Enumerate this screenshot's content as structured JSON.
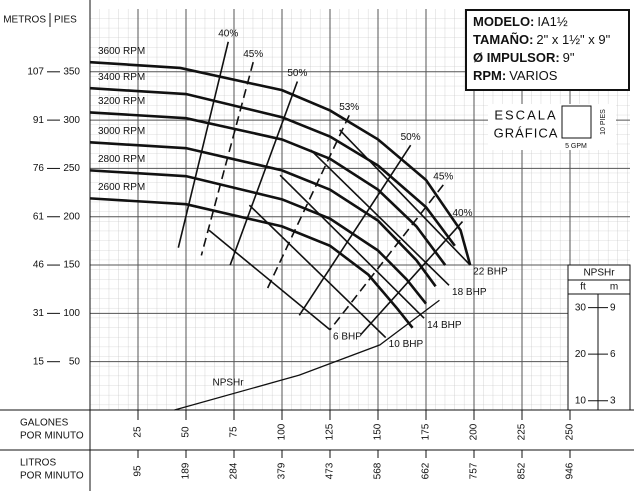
{
  "chart_data": {
    "type": "line",
    "color": "#111111",
    "y_title_left": "METROS",
    "y_title_right": "PIES",
    "x_title": [
      "GALONES",
      "POR MINUTO"
    ],
    "x2_title": [
      "LITROS",
      "POR MINUTO"
    ],
    "xlim": [
      0,
      281.25
    ],
    "ylim": [
      0,
      415
    ],
    "y2lim": [
      8,
      94.2
    ],
    "xticks": [
      25,
      50,
      75,
      100,
      125,
      150,
      175,
      200,
      225,
      250
    ],
    "x2_labels": [
      95,
      189,
      284,
      379,
      473,
      568,
      662,
      757,
      852,
      946
    ],
    "yticks": [
      50,
      100,
      150,
      200,
      250,
      300,
      350
    ],
    "y_meters": [
      15,
      31,
      46,
      61,
      76,
      91,
      107
    ],
    "y2_title": "NPSHr",
    "y2_units": [
      "ft",
      "m"
    ],
    "y2ticks": [
      10,
      20,
      30
    ],
    "y2_meters": [
      3,
      6,
      9
    ],
    "grid": true,
    "info": [
      {
        "label": "MODELO:",
        "value": "IA1½"
      },
      {
        "label": "TAMAÑO:",
        "value": "2\" x 1½\" x 9\""
      },
      {
        "label": "Ø IMPULSOR:",
        "value": "9\""
      },
      {
        "label": "RPM:",
        "value": "VARIOS"
      }
    ],
    "scale": {
      "title": [
        "ESCALA",
        "GRÁFICA"
      ],
      "height": "10 PIES",
      "width": "5 GPM"
    },
    "series": [
      {
        "name": "3600 RPM",
        "x": [
          0,
          47,
          100,
          125,
          150,
          175,
          193,
          198
        ],
        "values": [
          360,
          354,
          331,
          310,
          280,
          238,
          186,
          150
        ]
      },
      {
        "name": "3400 RPM",
        "x": [
          0,
          50,
          100,
          125,
          150,
          175,
          190
        ],
        "values": [
          333,
          327,
          303,
          283,
          253,
          210,
          170
        ]
      },
      {
        "name": "3200 RPM",
        "x": [
          0,
          50,
          100,
          125,
          150,
          170,
          185
        ],
        "values": [
          308,
          302,
          280,
          260,
          228,
          190,
          150
        ]
      },
      {
        "name": "3000 RPM",
        "x": [
          0,
          50,
          100,
          125,
          150,
          170,
          180
        ],
        "values": [
          277,
          271,
          248,
          228,
          196,
          155,
          128
        ]
      },
      {
        "name": "2800 RPM",
        "x": [
          0,
          50,
          100,
          125,
          150,
          165,
          175
        ],
        "values": [
          248,
          242,
          218,
          198,
          165,
          135,
          110
        ]
      },
      {
        "name": "2600 RPM",
        "x": [
          0,
          50,
          100,
          125,
          145,
          160,
          168
        ],
        "values": [
          219,
          213,
          190,
          170,
          140,
          105,
          85
        ]
      }
    ],
    "efficiency": [
      {
        "name": "40%",
        "x": [
          72,
          46
        ],
        "values": [
          381,
          168
        ],
        "dashed": false
      },
      {
        "name": "45%",
        "x": [
          85,
          58
        ],
        "values": [
          360,
          160
        ],
        "dashed": true
      },
      {
        "name": "50%",
        "x": [
          108,
          73
        ],
        "values": [
          340,
          150
        ],
        "dashed": false
      },
      {
        "name": "53%",
        "x": [
          135,
          92
        ],
        "values": [
          305,
          124
        ],
        "dashed": true
      },
      {
        "name": "50%",
        "x": [
          167,
          109
        ],
        "values": [
          274,
          98
        ],
        "dashed": false
      },
      {
        "name": "45%",
        "x": [
          184,
          125
        ],
        "values": [
          233,
          83
        ],
        "dashed": true
      },
      {
        "name": "40%",
        "x": [
          194,
          141
        ],
        "values": [
          195,
          78
        ],
        "dashed": false
      }
    ],
    "bhp": [
      {
        "name": "22 BHP",
        "x": [
          130,
          198
        ],
        "values": [
          290,
          150
        ]
      },
      {
        "name": "18 BHP",
        "x": [
          115,
          187
        ],
        "values": [
          269,
          129
        ]
      },
      {
        "name": "14 BHP",
        "x": [
          99,
          174
        ],
        "values": [
          243,
          95
        ]
      },
      {
        "name": "10 BHP",
        "x": [
          83,
          154
        ],
        "values": [
          212,
          75
        ]
      },
      {
        "name": "6 BHP",
        "x": [
          62,
          125
        ],
        "values": [
          186,
          83
        ]
      }
    ],
    "npshr": {
      "name": "NPSHr",
      "axis": "y2",
      "x": [
        44,
        109,
        151,
        182
      ],
      "values": [
        8,
        15.5,
        22,
        31.6
      ]
    }
  }
}
